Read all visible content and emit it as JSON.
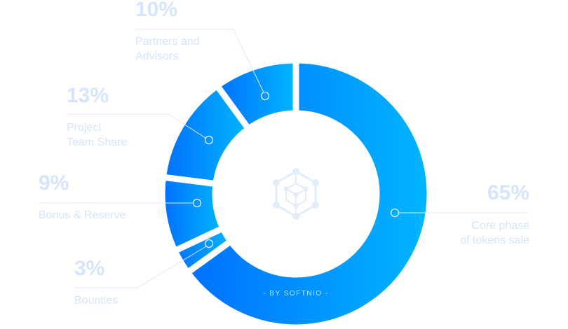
{
  "chart_data": {
    "type": "pie",
    "donut": true,
    "start": "top",
    "direction": "clockwise",
    "slices": [
      {
        "percent": 65,
        "value_label": "65%",
        "label_lines": [
          "Core phase",
          "of tokens sale"
        ]
      },
      {
        "percent": 3,
        "value_label": "3%",
        "label_lines": [
          "Bounties"
        ]
      },
      {
        "percent": 9,
        "value_label": "9%",
        "label_lines": [
          "Bonus & Reserve"
        ]
      },
      {
        "percent": 13,
        "value_label": "13%",
        "label_lines": [
          "Project",
          "Team Share"
        ]
      },
      {
        "percent": 10,
        "value_label": "10%",
        "label_lines": [
          "Partners and",
          "Advisors"
        ]
      }
    ],
    "colors": {
      "gradient_start": "#0070ff",
      "gradient_end": "#00b6ff",
      "label": "#d6e4fc",
      "center_icon": "#e3ecfb"
    },
    "center_icon": "hexagon-cube-network-icon",
    "watermark": "- BY SOFTNIO -"
  }
}
